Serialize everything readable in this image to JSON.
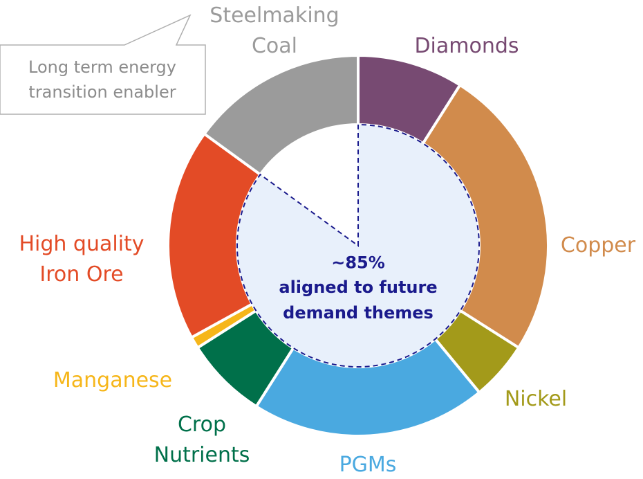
{
  "chart_data": {
    "type": "donut",
    "categories": [
      "Diamonds",
      "Copper",
      "Nickel",
      "PGMs",
      "Crop\nNutrients",
      "Manganese",
      "High quality\nIron Ore",
      "Steelmaking\nCoal"
    ],
    "values": [
      9,
      25,
      5,
      20,
      7,
      1,
      18,
      15
    ],
    "colors": [
      "#774a72",
      "#d18b4c",
      "#a39a1a",
      "#4aa9e0",
      "#00704a",
      "#f6b61a",
      "#e34b26",
      "#9b9b9b"
    ],
    "center_label": "~85%",
    "center_sublabel": "aligned to future\ndemand themes",
    "annotation": "Long term energy\ntransition enabler"
  }
}
